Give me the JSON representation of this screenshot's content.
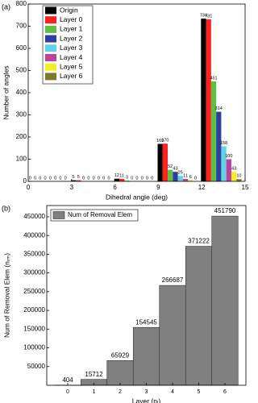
{
  "chart_data": [
    {
      "type": "grouped-bar",
      "panel_label": "(a)",
      "x_label": "Dihedral angle (deg)",
      "y_label": "Number of angles",
      "x": [
        0,
        3,
        6,
        9,
        12
      ],
      "series": [
        {
          "name": "Origin",
          "color": "#000000",
          "values": [
            0,
            5,
            12,
            169,
            734
          ]
        },
        {
          "name": "Layer 0",
          "color": "#ff2020",
          "values": [
            0,
            5,
            11,
            170,
            731
          ]
        },
        {
          "name": "Layer 1",
          "color": "#5cc040",
          "values": [
            0,
            0,
            3,
            52,
            451
          ]
        },
        {
          "name": "Layer 2",
          "color": "#2e3f9e",
          "values": [
            0,
            0,
            0,
            43,
            314
          ]
        },
        {
          "name": "Layer 3",
          "color": "#5fd3e8",
          "values": [
            0,
            0,
            0,
            25,
            158
          ]
        },
        {
          "name": "Layer 4",
          "color": "#c040a0",
          "values": [
            0,
            0,
            0,
            11,
            100
          ]
        },
        {
          "name": "Layer 5",
          "color": "#f5ee20",
          "values": [
            0,
            0,
            0,
            6,
            43
          ]
        },
        {
          "name": "Layer 6",
          "color": "#7d7a2c",
          "values": [
            0,
            0,
            0,
            0,
            10
          ]
        }
      ],
      "xlim": [
        0,
        15
      ],
      "xticks": [
        0,
        3,
        6,
        9,
        12,
        15
      ],
      "ylim": [
        0,
        800
      ],
      "yticks": [
        0,
        100,
        200,
        300,
        400,
        500,
        600,
        700,
        800
      ]
    },
    {
      "type": "bar",
      "panel_label": "(b)",
      "x_label": "Layer (nₗ)",
      "y_label": "Num of Removal Elem (nᵣₘ)",
      "categories": [
        "0",
        "1",
        "2",
        "3",
        "4",
        "5",
        "6"
      ],
      "series": [
        {
          "name": "Num of Removal Elem",
          "color": "#808080",
          "values": [
            404,
            15712,
            65929,
            154545,
            266687,
            371222,
            451790
          ]
        }
      ],
      "ylim": [
        0,
        480000
      ],
      "yticks": [
        50000,
        100000,
        150000,
        200000,
        250000,
        300000,
        350000,
        400000,
        450000
      ]
    }
  ]
}
